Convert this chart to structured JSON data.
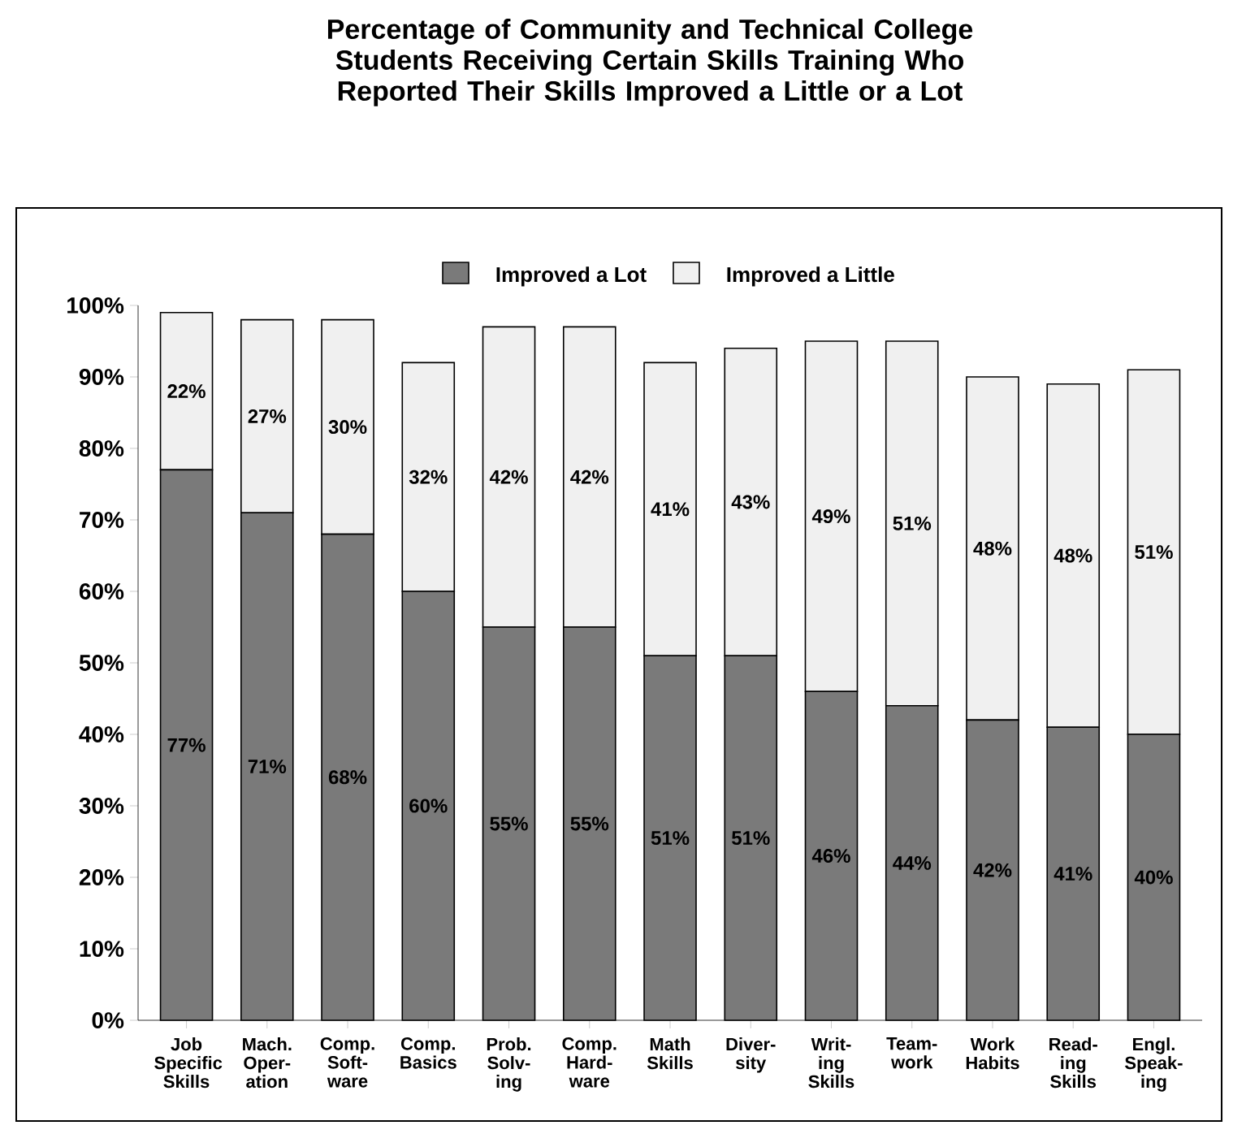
{
  "chart_data": {
    "type": "bar",
    "stacked": true,
    "title": "Percentage of Community and Technical College Students Receiving Certain Skills Training Who Reported Their Skills Improved a Little or a Lot",
    "categories": [
      "Job Specific Skills",
      "Mach. Oper-ation",
      "Comp. Soft-ware",
      "Comp. Basics",
      "Prob. Solv-ing",
      "Comp. Hard-ware",
      "Math Skills",
      "Diver-sity",
      "Writ-ing Skills",
      "Team-work",
      "Work Habits",
      "Read-ing Skills",
      "Engl. Speak-ing"
    ],
    "series": [
      {
        "name": "Improved a Lot",
        "color": "#7a7a7a",
        "values": [
          77,
          71,
          68,
          60,
          55,
          55,
          51,
          51,
          46,
          44,
          42,
          41,
          40
        ],
        "value_labels": [
          "77%",
          "71%",
          "68%",
          "60%",
          "55%",
          "55%",
          "51%",
          "51%",
          "46%",
          "44%",
          "42%",
          "41%",
          "40%"
        ]
      },
      {
        "name": "Improved a Little",
        "color": "#f0f0f0",
        "values": [
          22,
          27,
          30,
          32,
          42,
          42,
          41,
          43,
          49,
          51,
          48,
          48,
          51
        ],
        "value_labels": [
          "22%",
          "27%",
          "30%",
          "32%",
          "42%",
          "42%",
          "41%",
          "43%",
          "49%",
          "51%",
          "48%",
          "48%",
          "51%"
        ]
      }
    ],
    "ylim": [
      0,
      100
    ],
    "yticks": [
      {
        "value": 0,
        "label": "0%"
      },
      {
        "value": 10,
        "label": "10%"
      },
      {
        "value": 20,
        "label": "20%"
      },
      {
        "value": 30,
        "label": "30%"
      },
      {
        "value": 40,
        "label": "40%"
      },
      {
        "value": 50,
        "label": "50%"
      },
      {
        "value": 60,
        "label": "60%"
      },
      {
        "value": 70,
        "label": "70%"
      },
      {
        "value": 80,
        "label": "80%"
      },
      {
        "value": 90,
        "label": "90%"
      },
      {
        "value": 100,
        "label": "100%"
      }
    ],
    "legend": "top"
  }
}
